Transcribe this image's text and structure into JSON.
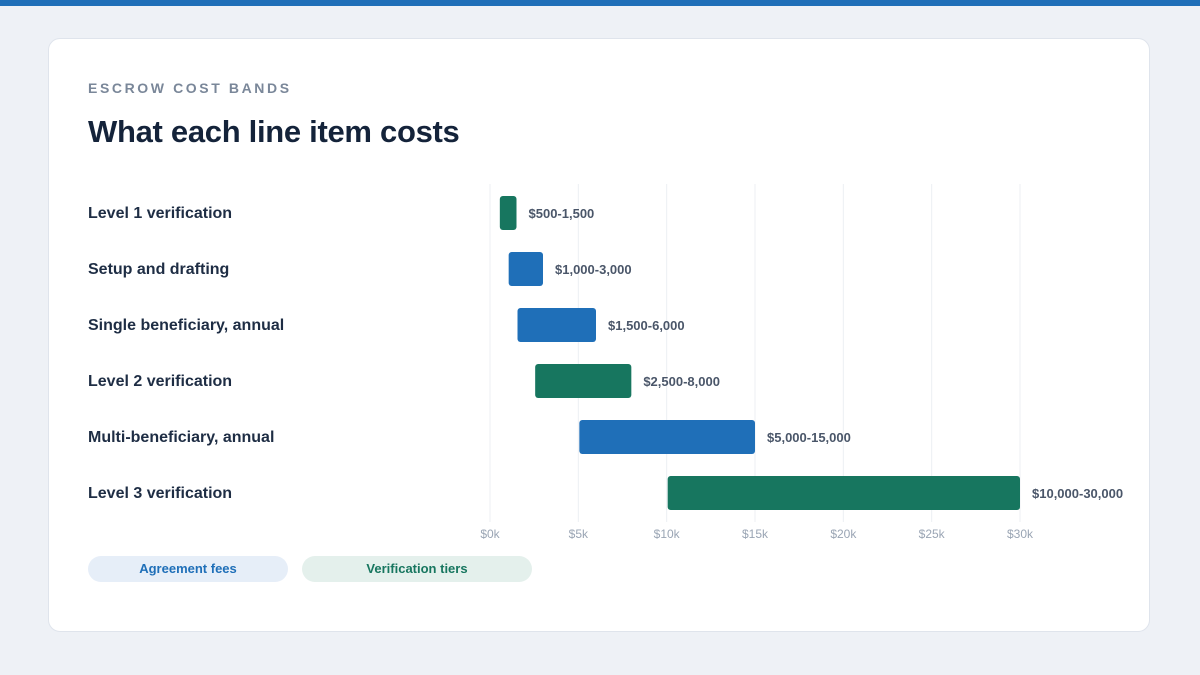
{
  "eyebrow": "ESCROW COST BANDS",
  "title": "What each line item costs",
  "colors": {
    "agreement": "#1f6fb8",
    "verification": "#17765f",
    "grid": "#eceff3",
    "tick": "#9aa5b4",
    "value_label": "#4a5669"
  },
  "legend": [
    {
      "key": "agreement",
      "label": "Agreement fees"
    },
    {
      "key": "verification",
      "label": "Verification tiers"
    }
  ],
  "chart_data": {
    "type": "bar",
    "orientation": "horizontal-range",
    "categories": [
      "Level 1 verification",
      "Setup and drafting",
      "Single beneficiary, annual",
      "Level 2 verification",
      "Multi-beneficiary, annual",
      "Level 3 verification"
    ],
    "series": [
      {
        "name": "Agreement fees",
        "key": "agreement",
        "ranges": [
          null,
          [
            1000,
            3000
          ],
          [
            1500,
            6000
          ],
          null,
          [
            5000,
            15000
          ],
          null
        ]
      },
      {
        "name": "Verification tiers",
        "key": "verification",
        "ranges": [
          [
            500,
            1500
          ],
          null,
          null,
          [
            2500,
            8000
          ],
          null,
          [
            10000,
            30000
          ]
        ]
      }
    ],
    "value_labels": [
      "$500-1,500",
      "$1,000-3,000",
      "$1,500-6,000",
      "$2,500-8,000",
      "$5,000-15,000",
      "$10,000-30,000"
    ],
    "xticks": [
      0,
      5000,
      10000,
      15000,
      20000,
      25000,
      30000
    ],
    "xtick_labels": [
      "$0k",
      "$5k",
      "$10k",
      "$15k",
      "$20k",
      "$25k",
      "$30k"
    ],
    "xlim": [
      0,
      30000
    ],
    "grid": true
  }
}
